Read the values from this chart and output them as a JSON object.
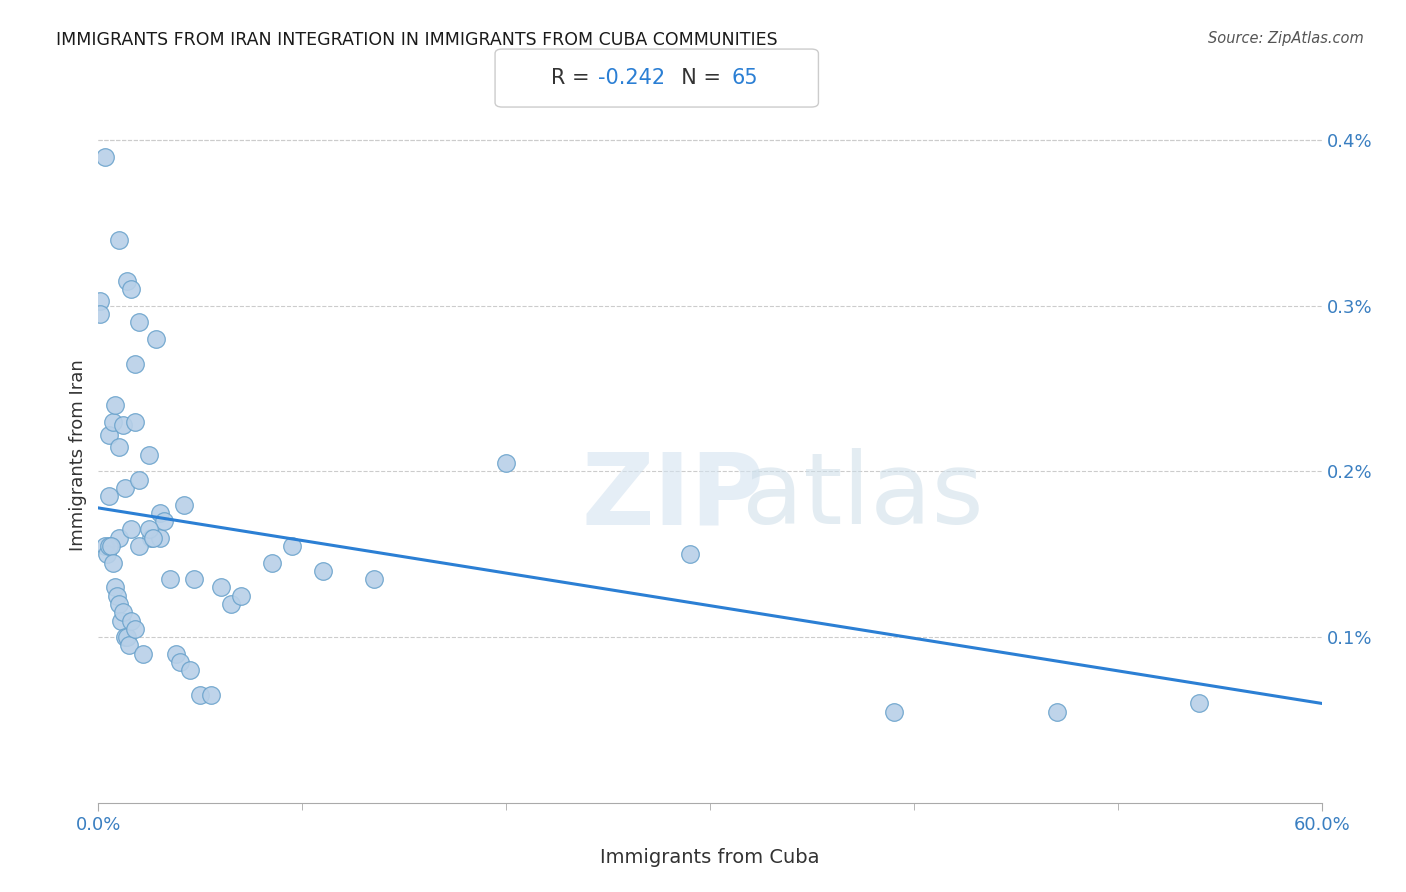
{
  "title": "IMMIGRANTS FROM IRAN INTEGRATION IN IMMIGRANTS FROM CUBA COMMUNITIES",
  "source": "Source: ZipAtlas.com",
  "xlabel": "Immigrants from Cuba",
  "ylabel": "Immigrants from Iran",
  "xlim": [
    0.0,
    0.6
  ],
  "ylim": [
    0.0,
    0.0042
  ],
  "xtick_labels": [
    "0.0%",
    "60.0%"
  ],
  "xtick_minor": [
    0.1,
    0.2,
    0.3,
    0.4,
    0.5
  ],
  "ytick_labels": [
    "0.1%",
    "0.2%",
    "0.3%",
    "0.4%"
  ],
  "ytick_vals": [
    0.001,
    0.002,
    0.003,
    0.004
  ],
  "scatter_color": "#b8d0e8",
  "scatter_edge_color": "#6ba3cc",
  "line_color": "#2b7fd4",
  "points_x": [
    0.003,
    0.01,
    0.014,
    0.02,
    0.018,
    0.03,
    0.016,
    0.028,
    0.001,
    0.001,
    0.005,
    0.005,
    0.007,
    0.008,
    0.01,
    0.01,
    0.012,
    0.013,
    0.016,
    0.018,
    0.02,
    0.025,
    0.026,
    0.03,
    0.032,
    0.035,
    0.038,
    0.04,
    0.042,
    0.045,
    0.047,
    0.05,
    0.055,
    0.06,
    0.065,
    0.07,
    0.085,
    0.095,
    0.11,
    0.135,
    0.2,
    0.29,
    0.39,
    0.47,
    0.54,
    0.003,
    0.004,
    0.005,
    0.006,
    0.007,
    0.008,
    0.009,
    0.01,
    0.011,
    0.012,
    0.013,
    0.014,
    0.015,
    0.016,
    0.018,
    0.02,
    0.022,
    0.025,
    0.027
  ],
  "points_y": [
    0.0039,
    0.0034,
    0.00315,
    0.0029,
    0.00265,
    0.00175,
    0.0031,
    0.0028,
    0.00303,
    0.00295,
    0.00222,
    0.00185,
    0.0023,
    0.0024,
    0.00215,
    0.0016,
    0.00228,
    0.0019,
    0.00165,
    0.0023,
    0.00195,
    0.0021,
    0.0016,
    0.0016,
    0.0017,
    0.00135,
    0.0009,
    0.00085,
    0.0018,
    0.0008,
    0.00135,
    0.00065,
    0.00065,
    0.0013,
    0.0012,
    0.00125,
    0.00145,
    0.00155,
    0.0014,
    0.00135,
    0.00205,
    0.0015,
    0.00055,
    0.00055,
    0.0006,
    0.00155,
    0.0015,
    0.00155,
    0.00155,
    0.00145,
    0.0013,
    0.00125,
    0.0012,
    0.0011,
    0.00115,
    0.001,
    0.001,
    0.00095,
    0.0011,
    0.00105,
    0.00155,
    0.0009,
    0.00165,
    0.0016
  ],
  "trendline_x": [
    0.0,
    0.6
  ],
  "trendline_y": [
    0.00178,
    0.0006
  ]
}
